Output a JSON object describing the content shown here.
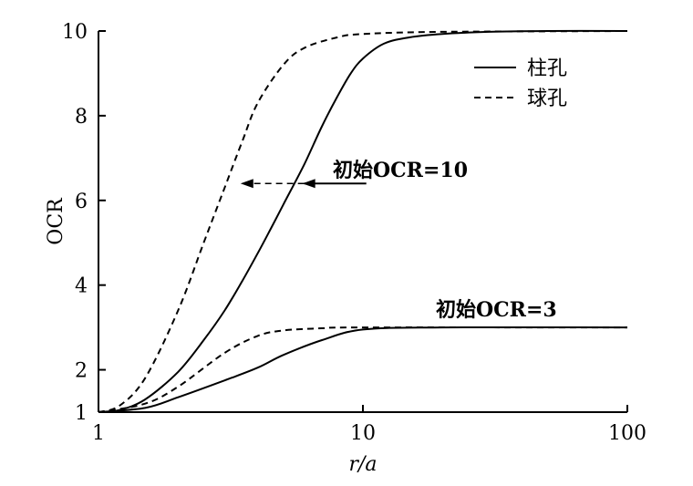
{
  "chart_data": {
    "type": "line",
    "xscale": "log",
    "xlim": [
      1,
      100
    ],
    "ylim": [
      1,
      10
    ],
    "xlabel": "r/a",
    "ylabel": "OCR",
    "x_ticks": [
      1,
      10,
      100
    ],
    "y_ticks": [
      1,
      2,
      4,
      6,
      8,
      10
    ],
    "grid": false,
    "legend_position": "top-right",
    "series": [
      {
        "name": "柱孔",
        "style": "solid",
        "group": "初始OCR=10",
        "points": [
          [
            1,
            1
          ],
          [
            1.2,
            1.05
          ],
          [
            1.5,
            1.3
          ],
          [
            2,
            1.95
          ],
          [
            2.5,
            2.7
          ],
          [
            3,
            3.4
          ],
          [
            3.5,
            4.1
          ],
          [
            4,
            4.75
          ],
          [
            4.5,
            5.35
          ],
          [
            5,
            5.9
          ],
          [
            6,
            6.85
          ],
          [
            7,
            7.75
          ],
          [
            8,
            8.45
          ],
          [
            9,
            9.0
          ],
          [
            10,
            9.35
          ],
          [
            12,
            9.7
          ],
          [
            15,
            9.85
          ],
          [
            20,
            9.93
          ],
          [
            30,
            9.98
          ],
          [
            50,
            10
          ],
          [
            100,
            10
          ]
        ]
      },
      {
        "name": "球孔",
        "style": "dashed",
        "group": "初始OCR=10",
        "points": [
          [
            1,
            1
          ],
          [
            1.2,
            1.15
          ],
          [
            1.5,
            1.8
          ],
          [
            2,
            3.4
          ],
          [
            2.5,
            5.0
          ],
          [
            3,
            6.3
          ],
          [
            3.5,
            7.4
          ],
          [
            4,
            8.3
          ],
          [
            5,
            9.2
          ],
          [
            6,
            9.6
          ],
          [
            8,
            9.85
          ],
          [
            10,
            9.93
          ],
          [
            20,
            9.98
          ],
          [
            100,
            10
          ]
        ]
      },
      {
        "name": "柱孔",
        "style": "solid",
        "group": "初始OCR=3",
        "points": [
          [
            1,
            1
          ],
          [
            1.5,
            1.1
          ],
          [
            2,
            1.35
          ],
          [
            3,
            1.75
          ],
          [
            4,
            2.05
          ],
          [
            5,
            2.35
          ],
          [
            7,
            2.7
          ],
          [
            10,
            2.95
          ],
          [
            20,
            3.0
          ],
          [
            100,
            3.0
          ]
        ]
      },
      {
        "name": "球孔",
        "style": "dashed",
        "group": "初始OCR=3",
        "points": [
          [
            1,
            1
          ],
          [
            1.5,
            1.2
          ],
          [
            2,
            1.6
          ],
          [
            3,
            2.4
          ],
          [
            4,
            2.8
          ],
          [
            5,
            2.93
          ],
          [
            7,
            2.98
          ],
          [
            10,
            3.0
          ],
          [
            100,
            3.0
          ]
        ]
      }
    ],
    "legend": [
      {
        "label": "柱孔",
        "style": "solid"
      },
      {
        "label": "球孔",
        "style": "dashed"
      }
    ],
    "annotations": [
      {
        "text": "初始OCR=10",
        "arrow": true,
        "arrow_y": 6.4,
        "arrow_from_x": 10.3,
        "arrow_to_x": 3.5,
        "arrow_mid_x": 6.0
      },
      {
        "text": "初始OCR=3",
        "arrow": false
      }
    ]
  }
}
